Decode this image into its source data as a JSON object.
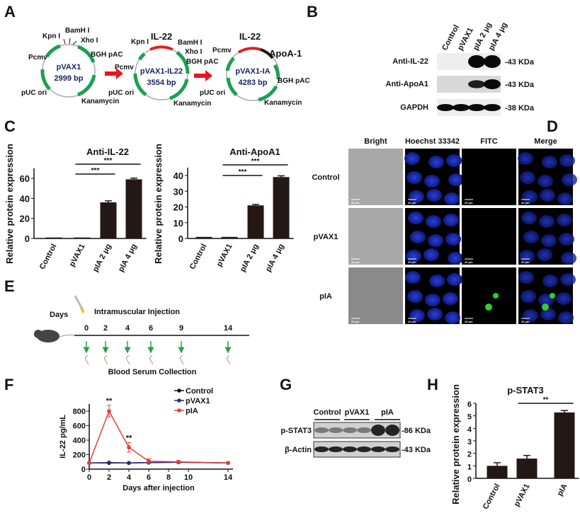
{
  "panels": {
    "A": "A",
    "B": "B",
    "C": "C",
    "D": "D",
    "E": "E",
    "F": "F",
    "G": "G",
    "H": "H"
  },
  "colors": {
    "backbone": "#aaaaaa",
    "feature": "#1aa152",
    "il22": "#e02020",
    "apoa1": "#111111",
    "arrow": "#e8141e",
    "bar": "#231815",
    "pIA_line": "#e0403a",
    "pVAX1_line": "#2a2a7a",
    "control_line": "#111111",
    "timeline_arrow": "#2aa24a",
    "nucleus": "#1c2fb0",
    "fitc": "#2ed12e"
  },
  "panelA": {
    "plasmids": [
      {
        "name": "pVAX1",
        "size": "2999 bp",
        "labels": [
          "Kpn I",
          "BamH I",
          "Xho I",
          "Pcmv",
          "BGH pAC",
          "pUC ori",
          "Kanamycin"
        ]
      },
      {
        "name": "pVAX1-IL22",
        "size": "3554 bp",
        "insert": "IL-22",
        "labels": [
          "Kpn I",
          "BamH I",
          "Xho I",
          "Pcmv",
          "BGH pAC",
          "pUC ori",
          "Kanamycin"
        ]
      },
      {
        "name": "pVAX1-IA",
        "size": "4283 bp",
        "insert": "IL-22",
        "insert2": "ApoA-1",
        "labels": [
          "Pcmv",
          "BGH pAC",
          "pUC ori",
          "Kanamycin"
        ]
      }
    ]
  },
  "panelB": {
    "lanes": [
      "Control",
      "pVAX1",
      "pIA 2 μg",
      "pIA 4 μg"
    ],
    "rows": [
      {
        "label": "Anti-IL-22",
        "size": "-43 KDa"
      },
      {
        "label": "Anti-ApoA1",
        "size": "-43 KDa"
      },
      {
        "label": "GAPDH",
        "size": "-38 KDa"
      }
    ]
  },
  "chart_data": [
    {
      "type": "bar",
      "title": "Anti-IL-22",
      "ylabel": "Relative protein expression",
      "categories": [
        "Control",
        "pVAX1",
        "pIA 2 μg",
        "pIA 4 μg"
      ],
      "values": [
        1,
        1,
        36,
        59
      ],
      "errors": [
        0,
        0,
        1.5,
        1.2
      ],
      "ylim": [
        0,
        70
      ],
      "yticks": [
        0,
        20,
        40,
        60
      ],
      "significance": [
        {
          "from": "pVAX1",
          "to": "pIA 2 μg",
          "label": "***"
        },
        {
          "from": "pVAX1",
          "to": "pIA 4 μg",
          "label": "***"
        }
      ]
    },
    {
      "type": "bar",
      "title": "Anti-ApoA1",
      "ylabel": "Relative protein expression",
      "categories": [
        "Control",
        "pVAX1",
        "pIA 2 μg",
        "pIA 4 μg"
      ],
      "values": [
        1,
        1,
        21,
        39
      ],
      "errors": [
        0,
        0,
        0.6,
        0.8
      ],
      "ylim": [
        0,
        45
      ],
      "yticks": [
        0,
        10,
        20,
        30,
        40
      ],
      "significance": [
        {
          "from": "pVAX1",
          "to": "pIA 2 μg",
          "label": "***"
        },
        {
          "from": "pVAX1",
          "to": "pIA 4 μg",
          "label": "***"
        }
      ]
    },
    {
      "type": "line",
      "xlabel": "Days after injection",
      "ylabel": "IL-22 pg/mL",
      "xlim": [
        0,
        14.5
      ],
      "ylim": [
        0,
        900
      ],
      "xticks": [
        0,
        2,
        4,
        6,
        8,
        10,
        14
      ],
      "yticks": [
        0,
        200,
        400,
        600,
        800
      ],
      "legend": "top-right",
      "x": [
        0,
        2,
        4,
        6,
        9,
        14
      ],
      "series": [
        {
          "name": "Control",
          "values": [
            85,
            85,
            85,
            90,
            95,
            85
          ],
          "errors": [
            0,
            5,
            5,
            5,
            5,
            0
          ]
        },
        {
          "name": "pVAX1",
          "values": [
            85,
            90,
            85,
            90,
            95,
            85
          ],
          "errors": [
            0,
            5,
            5,
            5,
            5,
            0
          ]
        },
        {
          "name": "pIA",
          "values": [
            85,
            800,
            300,
            110,
            100,
            85
          ],
          "errors": [
            0,
            80,
            65,
            30,
            20,
            5
          ]
        }
      ],
      "annotations": [
        {
          "x": 2,
          "label": "**"
        },
        {
          "x": 4,
          "label": "**"
        }
      ]
    },
    {
      "type": "bar",
      "title": "p-STAT3",
      "ylabel": "Relative protein expression",
      "categories": [
        "Control",
        "pVAX1",
        "pIA"
      ],
      "values": [
        1.0,
        1.58,
        5.27
      ],
      "errors": [
        0.25,
        0.25,
        0.15
      ],
      "ylim": [
        0,
        6
      ],
      "yticks": [
        0,
        1,
        2,
        3,
        4,
        5,
        6
      ],
      "significance": [
        {
          "from": "pVAX1",
          "to": "pIA",
          "label": "**"
        }
      ]
    }
  ],
  "panelD": {
    "columns": [
      "Bright",
      "Hoechst 33342",
      "FITC",
      "Merge"
    ],
    "rows": [
      "Control",
      "pVAX1",
      "pIA"
    ],
    "scale": "20 μm"
  },
  "panelE": {
    "days_label": "Days",
    "injection": "Intramuscular Injection",
    "collection": "Blood Serum Collection",
    "days": [
      "0",
      "2",
      "4",
      "6",
      "9",
      "14"
    ]
  },
  "panelG": {
    "groups": [
      "Control",
      "pVAX1",
      "pIA"
    ],
    "rows": [
      {
        "label": "p-STAT3",
        "size": "-86 KDa"
      },
      {
        "label": "β-Actin",
        "size": "-43 KDa"
      }
    ]
  }
}
